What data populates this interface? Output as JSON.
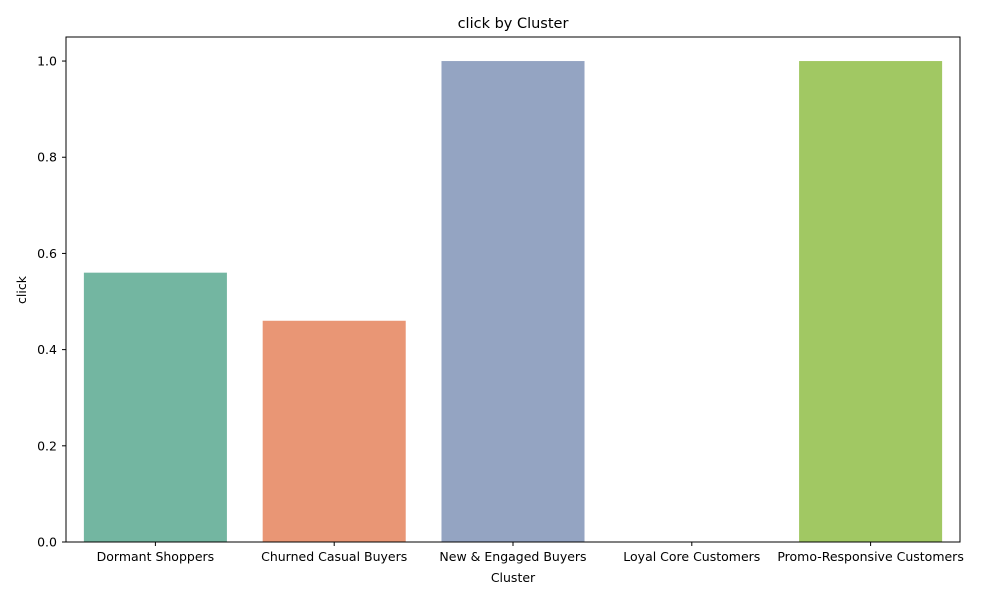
{
  "chart_data": {
    "type": "bar",
    "title": "click by Cluster",
    "xlabel": "Cluster",
    "ylabel": "click",
    "categories": [
      "Dormant Shoppers",
      "Churned Casual Buyers",
      "New & Engaged Buyers",
      "Loyal Core Customers",
      "Promo-Responsive Customers"
    ],
    "values": [
      0.56,
      0.46,
      1.0,
      0.0,
      1.0
    ],
    "colors": [
      "#73b6a1",
      "#e99675",
      "#94a4c2",
      "#d690bd",
      "#a1c863"
    ],
    "ylim": [
      0,
      1.05
    ],
    "yticks": [
      0.0,
      0.2,
      0.4,
      0.6,
      0.8,
      1.0
    ],
    "ytick_labels": [
      "0.0",
      "0.2",
      "0.4",
      "0.6",
      "0.8",
      "1.0"
    ],
    "grid": false,
    "legend": "none"
  }
}
